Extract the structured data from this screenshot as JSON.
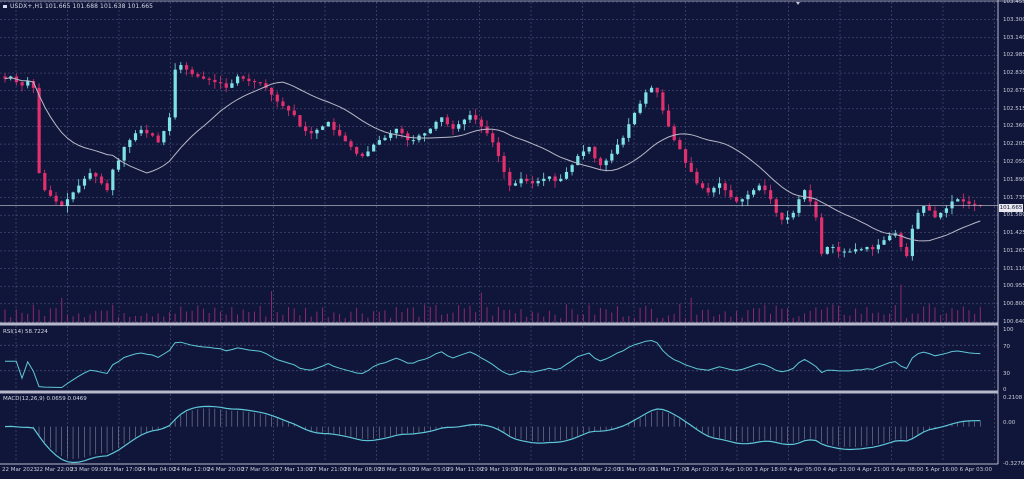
{
  "header": {
    "symbol_line": "USDX+,H1  101.665 101.688 101.638 101.665"
  },
  "indicators": {
    "rsi_label": "RSI(14) 58.7224",
    "macd_label": "MACD(12,26,9) 0.0659 0.0469"
  },
  "current_price_tag": "101.665",
  "price_axis": [
    "103.455",
    "103.300",
    "103.140",
    "102.985",
    "102.830",
    "102.675",
    "102.515",
    "102.360",
    "102.205",
    "102.050",
    "101.890",
    "101.735",
    "101.580",
    "101.425",
    "101.265",
    "101.110",
    "100.955",
    "100.800",
    "100.640"
  ],
  "rsi_axis": [
    "100",
    "70",
    "30",
    "0"
  ],
  "macd_axis": [
    "0.2108",
    "0.00",
    "-0.3276"
  ],
  "time_axis": [
    "22 Mar 2023",
    "22 Mar 22:00",
    "23 Mar 09:00",
    "23 Mar 17:00",
    "24 Mar 04:00",
    "24 Mar 12:00",
    "24 Mar 20:00",
    "27 Mar 05:00",
    "27 Mar 13:00",
    "27 Mar 21:00",
    "28 Mar 08:00",
    "28 Mar 16:00",
    "29 Mar 03:00",
    "29 Mar 11:00",
    "29 Mar 19:00",
    "30 Mar 06:00",
    "30 Mar 14:00",
    "30 Mar 22:00",
    "31 Mar 09:00",
    "31 Mar 17:00",
    "3 Apr 02:00",
    "3 Apr 10:00",
    "3 Apr 18:00",
    "4 Apr 05:00",
    "4 Apr 13:00",
    "4 Apr 21:00",
    "5 Apr 08:00",
    "5 Apr 16:00",
    "6 Apr 03:00"
  ],
  "colors": {
    "background": "#10163a",
    "grid": "#5a6088",
    "bull": "#7fe3e6",
    "bear": "#e0306e",
    "ma": "#b8b8c8",
    "volume": "#8a2a6a",
    "rsi": "#5fc8d8",
    "macd": "#5fc8d8",
    "macd_hist": "#b8b8c8"
  },
  "chart_data": [
    {
      "type": "candlestick",
      "title": "USDX+, H1",
      "ylim": [
        100.64,
        103.455
      ],
      "close_series": [
        102.78,
        102.8,
        102.75,
        102.72,
        102.76,
        102.7,
        101.95,
        101.8,
        101.75,
        101.7,
        101.66,
        101.72,
        101.78,
        101.84,
        101.9,
        101.95,
        101.92,
        101.86,
        101.8,
        101.98,
        102.06,
        102.18,
        102.24,
        102.3,
        102.33,
        102.3,
        102.28,
        102.22,
        102.32,
        102.44,
        102.86,
        102.9,
        102.86,
        102.82,
        102.8,
        102.78,
        102.77,
        102.75,
        102.74,
        102.7,
        102.74,
        102.8,
        102.78,
        102.76,
        102.75,
        102.74,
        102.7,
        102.64,
        102.58,
        102.54,
        102.5,
        102.46,
        102.36,
        102.32,
        102.3,
        102.33,
        102.36,
        102.4,
        102.33,
        102.28,
        102.23,
        102.18,
        102.12,
        102.1,
        102.14,
        102.2,
        102.24,
        102.26,
        102.3,
        102.34,
        102.3,
        102.24,
        102.24,
        102.28,
        102.3,
        102.34,
        102.4,
        102.44,
        102.38,
        102.34,
        102.38,
        102.42,
        102.46,
        102.42,
        102.36,
        102.3,
        102.22,
        102.1,
        101.96,
        101.84,
        101.86,
        101.9,
        101.88,
        101.86,
        101.88,
        101.9,
        101.92,
        101.88,
        101.9,
        101.96,
        102.02,
        102.1,
        102.14,
        102.18,
        102.08,
        102.02,
        102.06,
        102.12,
        102.2,
        102.26,
        102.38,
        102.48,
        102.56,
        102.66,
        102.7,
        102.66,
        102.5,
        102.36,
        102.24,
        102.16,
        102.04,
        101.96,
        101.86,
        101.82,
        101.78,
        101.82,
        101.86,
        101.8,
        101.74,
        101.7,
        101.72,
        101.76,
        101.8,
        101.84,
        101.8,
        101.72,
        101.6,
        101.54,
        101.56,
        101.6,
        101.72,
        101.8,
        101.7,
        101.56,
        101.24,
        101.3,
        101.3,
        101.26,
        101.26,
        101.26,
        101.28,
        101.28,
        101.3,
        101.28,
        101.32,
        101.36,
        101.4,
        101.42,
        101.3,
        101.22,
        101.46,
        101.6,
        101.66,
        101.62,
        101.56,
        101.6,
        101.64,
        101.7,
        101.72,
        101.7,
        101.68,
        101.67,
        101.665
      ]
    },
    {
      "type": "line",
      "title": "RSI(14)",
      "value": 58.7224,
      "ylim": [
        0,
        100
      ],
      "levels": [
        70,
        30
      ]
    },
    {
      "type": "line+bar",
      "title": "MACD(12,26,9)",
      "macd": 0.0659,
      "signal": 0.0469,
      "ylim": [
        -0.3276,
        0.2108
      ]
    }
  ]
}
